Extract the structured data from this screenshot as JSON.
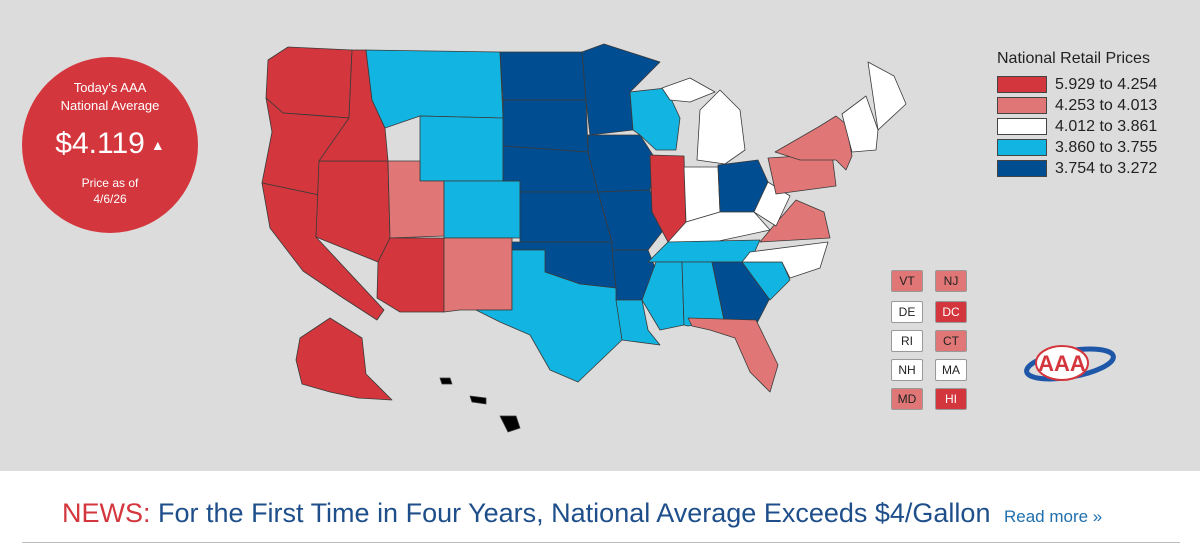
{
  "badge": {
    "title_line1": "Today's AAA",
    "title_line2": "National Average",
    "price": "$4.119",
    "trend_icon": "up-arrow-icon",
    "as_of_line1": "Price as of",
    "as_of_line2": "4/6/26"
  },
  "legend": {
    "title": "National Retail Prices",
    "items": [
      {
        "label": "5.929 to 4.254",
        "color": "#d3363c"
      },
      {
        "label": "4.253 to 4.013",
        "color": "#e07776"
      },
      {
        "label": "4.012 to 3.861",
        "color": "#ffffff"
      },
      {
        "label": "3.860 to 3.755",
        "color": "#12b5e1"
      },
      {
        "label": "3.754 to 3.272",
        "color": "#004d92"
      }
    ]
  },
  "small_states": [
    {
      "abbr": "VT",
      "tier": 1
    },
    {
      "abbr": "NJ",
      "tier": 1
    },
    {
      "abbr": "DE",
      "tier": 2
    },
    {
      "abbr": "DC",
      "tier": 0
    },
    {
      "abbr": "RI",
      "tier": 2
    },
    {
      "abbr": "CT",
      "tier": 1
    },
    {
      "abbr": "NH",
      "tier": 2
    },
    {
      "abbr": "MA",
      "tier": 2
    },
    {
      "abbr": "MD",
      "tier": 1
    },
    {
      "abbr": "HI",
      "tier": 0
    }
  ],
  "state_tiers": {
    "WA": 0,
    "OR": 0,
    "CA": 0,
    "NV": 0,
    "ID": 0,
    "AZ": 0,
    "IL": 0,
    "AK": 0,
    "UT": 1,
    "NM": 1,
    "PA": 1,
    "NY": 1,
    "VA": 1,
    "FL": 1,
    "MI": 2,
    "IN": 2,
    "KY": 2,
    "WV": 2,
    "NC": 2,
    "ME": 2,
    "MT": 3,
    "WY": 3,
    "CO": 3,
    "WI": 3,
    "TX": 3,
    "LA": 3,
    "MS": 3,
    "AL": 3,
    "TN": 3,
    "SC": 3,
    "ND": 4,
    "SD": 4,
    "NE": 4,
    "KS": 4,
    "OK": 4,
    "MN": 4,
    "IA": 4,
    "MO": 4,
    "AR": 4,
    "OH": 4,
    "GA": 4
  },
  "logo": {
    "text": "AAA"
  },
  "news": {
    "label": "NEWS:",
    "headline": "For the First Time in Four Years, National Average Exceeds $4/Gallon",
    "read_more": "Read more »"
  }
}
